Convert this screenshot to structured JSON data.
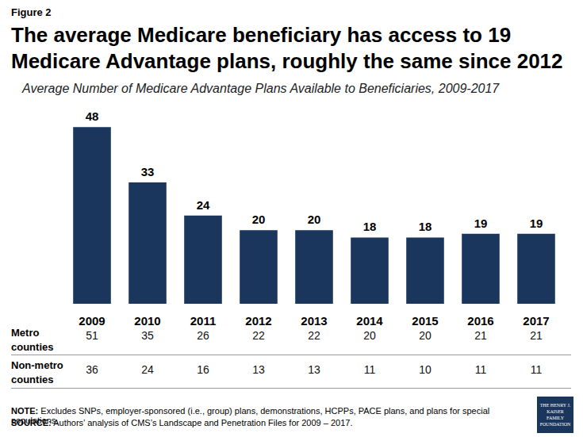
{
  "chart_data": {
    "type": "bar",
    "figure_label": "Figure 2",
    "title": "The average Medicare beneficiary has access to 19 Medicare Advantage plans, roughly the same since 2012",
    "subtitle": "Average Number of Medicare Advantage Plans Available to Beneficiaries, 2009-2017",
    "categories": [
      "2009",
      "2010",
      "2011",
      "2012",
      "2013",
      "2014",
      "2015",
      "2016",
      "2017"
    ],
    "values": [
      48,
      33,
      24,
      20,
      20,
      18,
      18,
      19,
      19
    ],
    "color": "#1b365d",
    "ylim": [
      0,
      50
    ],
    "yticks": [
      0,
      50
    ],
    "grid": false,
    "data_labels": true,
    "tick_labels": "x",
    "table": {
      "rows": [
        {
          "label": "Metro counties",
          "values": [
            51,
            35,
            26,
            22,
            22,
            20,
            20,
            21,
            21
          ]
        },
        {
          "label": "Non-metro counties",
          "values": [
            36,
            24,
            16,
            13,
            13,
            11,
            10,
            11,
            11
          ]
        }
      ]
    },
    "note": {
      "label": "NOTE:",
      "text": "Excludes SNPs, employer-sponsored (i.e., group) plans, demonstrations, HCPPs, PACE plans, and plans for special populations."
    },
    "source": {
      "label": "SOURCE:",
      "text": "Authors’ analysis of CMS’s Landscape and Penetration Files for 2009 – 2017."
    },
    "logo": [
      "THE HENRY J.",
      "KAISER",
      "FAMILY",
      "FOUNDATION"
    ]
  }
}
